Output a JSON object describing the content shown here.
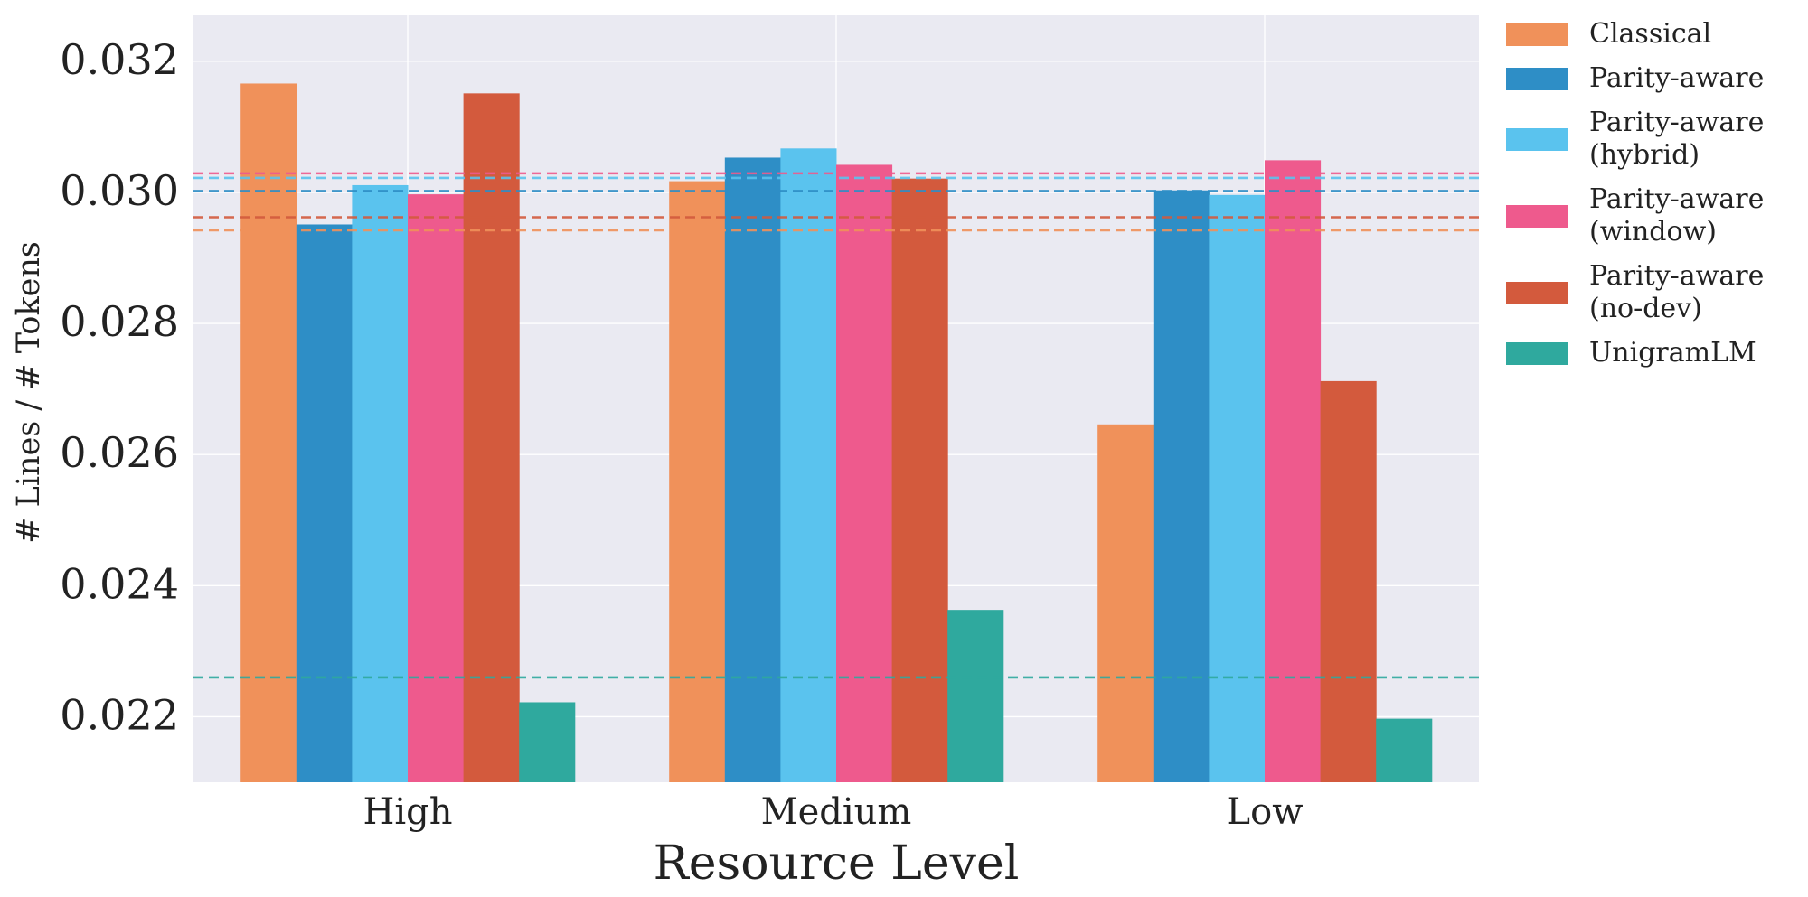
{
  "chart_data": {
    "type": "bar",
    "title": "",
    "xlabel": "Resource Level",
    "ylabel": "# Lines / # Tokens",
    "ylim": [
      0.021,
      0.0327
    ],
    "yticks": [
      "0.022",
      "0.024",
      "0.026",
      "0.028",
      "0.030",
      "0.032"
    ],
    "grid": true,
    "legend_position": "outside-right",
    "categories": [
      "High",
      "Medium",
      "Low"
    ],
    "series": [
      {
        "name": "Classical",
        "color": "#F0915A",
        "values": [
          0.03166,
          0.03017,
          0.02646
        ],
        "reference": 0.02942
      },
      {
        "name": "Parity-aware",
        "color": "#2E8EC6",
        "values": [
          0.02951,
          0.03053,
          0.03003
        ],
        "reference": 0.03002
      },
      {
        "name": "Parity-aware\n(hybrid)",
        "color": "#5AC3EE",
        "values": [
          0.03011,
          0.03067,
          0.02996
        ],
        "reference": 0.03022
      },
      {
        "name": "Parity-aware\n(window)",
        "color": "#EE5A8D",
        "values": [
          0.02997,
          0.03042,
          0.03049
        ],
        "reference": 0.03029
      },
      {
        "name": "Parity-aware\n(no-dev)",
        "color": "#D35A3D",
        "values": [
          0.03151,
          0.03021,
          0.02712
        ],
        "reference": 0.02962
      },
      {
        "name": "UnigramLM",
        "color": "#2FA99E",
        "values": [
          0.02222,
          0.02363,
          0.02197
        ],
        "reference": 0.0226
      }
    ]
  }
}
